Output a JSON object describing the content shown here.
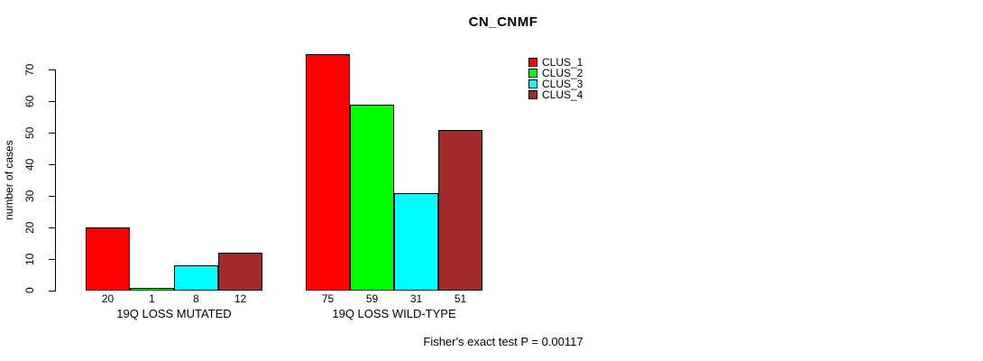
{
  "chart_data": {
    "type": "bar",
    "title": "CN_CNMF",
    "ylabel": "number of cases",
    "xlabel": "",
    "ylim": [
      0,
      70
    ],
    "yticks": [
      0,
      10,
      20,
      30,
      40,
      50,
      60,
      70
    ],
    "grid": false,
    "legend_position": "top-right",
    "categories": [
      "19Q LOSS MUTATED",
      "19Q LOSS WILD-TYPE"
    ],
    "series": [
      {
        "name": "CLUS_1",
        "color": "#FF0000",
        "values": [
          20,
          75
        ]
      },
      {
        "name": "CLUS_2",
        "color": "#00FF00",
        "values": [
          1,
          59
        ]
      },
      {
        "name": "CLUS_3",
        "color": "#00FFFF",
        "values": [
          8,
          31
        ]
      },
      {
        "name": "CLUS_4",
        "color": "#A52A2A",
        "values": [
          12,
          51
        ]
      }
    ],
    "bar_border_color": "#000000",
    "annotation": "Fisher's exact test P = 0.00117"
  }
}
